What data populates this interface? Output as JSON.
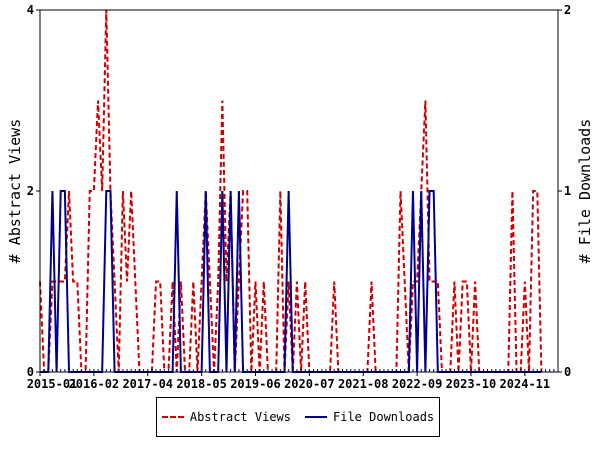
{
  "chart_data": {
    "type": "line",
    "x_ticks": [
      "2015-01",
      "2016-02",
      "2017-04",
      "2018-05",
      "2019-06",
      "2020-07",
      "2021-08",
      "2022-09",
      "2023-10",
      "2024-11"
    ],
    "ylabel_left": "# Abstract Views",
    "ylabel_right": "# File Downloads",
    "yticks_left": [
      "0",
      "2",
      "4"
    ],
    "yticks_right": [
      "0",
      "1",
      "2"
    ],
    "ylim_left": [
      0,
      4
    ],
    "ylim_right": [
      0,
      2
    ],
    "x_month_range": [
      0,
      125
    ],
    "legend_placement": "bottom",
    "series": [
      {
        "name": "Abstract Views",
        "axis": "left",
        "color": "#cc0000",
        "style": "dashed",
        "points": [
          [
            0,
            1
          ],
          [
            1,
            0
          ],
          [
            2,
            0
          ],
          [
            3,
            1
          ],
          [
            4,
            1
          ],
          [
            5,
            1
          ],
          [
            6,
            1
          ],
          [
            7,
            2
          ],
          [
            8,
            1
          ],
          [
            9,
            1
          ],
          [
            10,
            0
          ],
          [
            11,
            0
          ],
          [
            12,
            2
          ],
          [
            13,
            2
          ],
          [
            14,
            3
          ],
          [
            15,
            2
          ],
          [
            16,
            4
          ],
          [
            17,
            2
          ],
          [
            18,
            1
          ],
          [
            19,
            0
          ],
          [
            20,
            2
          ],
          [
            21,
            1
          ],
          [
            22,
            2
          ],
          [
            23,
            1
          ],
          [
            24,
            0
          ],
          [
            25,
            0
          ],
          [
            26,
            0
          ],
          [
            27,
            0
          ],
          [
            28,
            1
          ],
          [
            29,
            1
          ],
          [
            30,
            0
          ],
          [
            31,
            0
          ],
          [
            32,
            1
          ],
          [
            33,
            0
          ],
          [
            34,
            1
          ],
          [
            35,
            0
          ],
          [
            36,
            0
          ],
          [
            37,
            1
          ],
          [
            38,
            0
          ],
          [
            39,
            1
          ],
          [
            40,
            2
          ],
          [
            41,
            1
          ],
          [
            42,
            0
          ],
          [
            43,
            1
          ],
          [
            44,
            3
          ],
          [
            45,
            1
          ],
          [
            46,
            2
          ],
          [
            47,
            0
          ],
          [
            48,
            1
          ],
          [
            49,
            2
          ],
          [
            50,
            2
          ],
          [
            51,
            0
          ],
          [
            52,
            1
          ],
          [
            53,
            0
          ],
          [
            54,
            1
          ],
          [
            55,
            0
          ],
          [
            56,
            0
          ],
          [
            57,
            0
          ],
          [
            58,
            2
          ],
          [
            59,
            0
          ],
          [
            60,
            1
          ],
          [
            61,
            0
          ],
          [
            62,
            1
          ],
          [
            63,
            0
          ],
          [
            64,
            1
          ],
          [
            65,
            0
          ],
          [
            66,
            0
          ],
          [
            67,
            0
          ],
          [
            68,
            0
          ],
          [
            69,
            0
          ],
          [
            70,
            0
          ],
          [
            71,
            1
          ],
          [
            72,
            0
          ],
          [
            73,
            0
          ],
          [
            74,
            0
          ],
          [
            75,
            0
          ],
          [
            76,
            0
          ],
          [
            77,
            0
          ],
          [
            78,
            0
          ],
          [
            79,
            0
          ],
          [
            80,
            1
          ],
          [
            81,
            0
          ],
          [
            82,
            0
          ],
          [
            83,
            0
          ],
          [
            84,
            0
          ],
          [
            85,
            0
          ],
          [
            86,
            0
          ],
          [
            87,
            2
          ],
          [
            88,
            1
          ],
          [
            89,
            0
          ],
          [
            90,
            1
          ],
          [
            91,
            1
          ],
          [
            92,
            2
          ],
          [
            93,
            3
          ],
          [
            94,
            1
          ],
          [
            95,
            1
          ],
          [
            96,
            1
          ],
          [
            97,
            0
          ],
          [
            98,
            0
          ],
          [
            99,
            0
          ],
          [
            100,
            1
          ],
          [
            101,
            0
          ],
          [
            102,
            1
          ],
          [
            103,
            1
          ],
          [
            104,
            0
          ],
          [
            105,
            1
          ],
          [
            106,
            0
          ],
          [
            107,
            0
          ],
          [
            108,
            0
          ],
          [
            109,
            0
          ],
          [
            110,
            0
          ],
          [
            111,
            0
          ],
          [
            112,
            0
          ],
          [
            113,
            0
          ],
          [
            114,
            2
          ],
          [
            115,
            0
          ],
          [
            116,
            0
          ],
          [
            117,
            1
          ],
          [
            118,
            0
          ],
          [
            119,
            2
          ],
          [
            120,
            2
          ],
          [
            121,
            0
          ]
        ]
      },
      {
        "name": "File Downloads",
        "axis": "right",
        "color": "#00008b",
        "style": "solid",
        "points": [
          [
            0,
            0
          ],
          [
            1,
            0
          ],
          [
            2,
            0
          ],
          [
            3,
            1
          ],
          [
            4,
            0
          ],
          [
            5,
            1
          ],
          [
            6,
            1
          ],
          [
            7,
            0
          ],
          [
            8,
            0
          ],
          [
            9,
            0
          ],
          [
            10,
            0
          ],
          [
            11,
            0
          ],
          [
            12,
            0
          ],
          [
            13,
            0
          ],
          [
            14,
            0
          ],
          [
            15,
            0
          ],
          [
            16,
            1
          ],
          [
            17,
            1
          ],
          [
            18,
            0
          ],
          [
            19,
            0
          ],
          [
            20,
            0
          ],
          [
            21,
            0
          ],
          [
            22,
            0
          ],
          [
            23,
            0
          ],
          [
            24,
            0
          ],
          [
            25,
            0
          ],
          [
            26,
            0
          ],
          [
            27,
            0
          ],
          [
            28,
            0
          ],
          [
            29,
            0
          ],
          [
            30,
            0
          ],
          [
            31,
            0
          ],
          [
            32,
            0
          ],
          [
            33,
            1
          ],
          [
            34,
            0
          ],
          [
            35,
            0
          ],
          [
            36,
            0
          ],
          [
            37,
            0
          ],
          [
            38,
            0
          ],
          [
            39,
            0
          ],
          [
            40,
            1
          ],
          [
            41,
            0
          ],
          [
            42,
            0
          ],
          [
            43,
            0
          ],
          [
            44,
            1
          ],
          [
            45,
            0
          ],
          [
            46,
            1
          ],
          [
            47,
            0
          ],
          [
            48,
            1
          ],
          [
            49,
            0
          ],
          [
            50,
            0
          ],
          [
            51,
            0
          ],
          [
            52,
            0
          ],
          [
            53,
            0
          ],
          [
            54,
            0
          ],
          [
            55,
            0
          ],
          [
            56,
            0
          ],
          [
            57,
            0
          ],
          [
            58,
            0
          ],
          [
            59,
            0
          ],
          [
            60,
            1
          ],
          [
            61,
            0
          ],
          [
            62,
            0
          ],
          [
            63,
            0
          ],
          [
            64,
            0
          ],
          [
            65,
            0
          ],
          [
            66,
            0
          ],
          [
            67,
            0
          ],
          [
            68,
            0
          ],
          [
            69,
            0
          ],
          [
            70,
            0
          ],
          [
            71,
            0
          ],
          [
            72,
            0
          ],
          [
            73,
            0
          ],
          [
            74,
            0
          ],
          [
            75,
            0
          ],
          [
            76,
            0
          ],
          [
            77,
            0
          ],
          [
            78,
            0
          ],
          [
            79,
            0
          ],
          [
            80,
            0
          ],
          [
            81,
            0
          ],
          [
            82,
            0
          ],
          [
            83,
            0
          ],
          [
            84,
            0
          ],
          [
            85,
            0
          ],
          [
            86,
            0
          ],
          [
            87,
            0
          ],
          [
            88,
            0
          ],
          [
            89,
            0
          ],
          [
            90,
            1
          ],
          [
            91,
            0
          ],
          [
            92,
            1
          ],
          [
            93,
            0
          ],
          [
            94,
            1
          ],
          [
            95,
            1
          ],
          [
            96,
            0
          ],
          [
            97,
            0
          ],
          [
            98,
            0
          ],
          [
            99,
            0
          ],
          [
            100,
            0
          ],
          [
            101,
            0
          ],
          [
            102,
            0
          ],
          [
            103,
            0
          ],
          [
            104,
            0
          ],
          [
            105,
            0
          ],
          [
            106,
            0
          ],
          [
            107,
            0
          ],
          [
            108,
            0
          ],
          [
            109,
            0
          ],
          [
            110,
            0
          ],
          [
            111,
            0
          ],
          [
            112,
            0
          ],
          [
            113,
            0
          ],
          [
            114,
            0
          ],
          [
            115,
            0
          ],
          [
            116,
            0
          ],
          [
            117,
            0
          ],
          [
            118,
            0
          ],
          [
            119,
            0
          ],
          [
            120,
            0
          ],
          [
            121,
            0
          ]
        ]
      }
    ]
  }
}
